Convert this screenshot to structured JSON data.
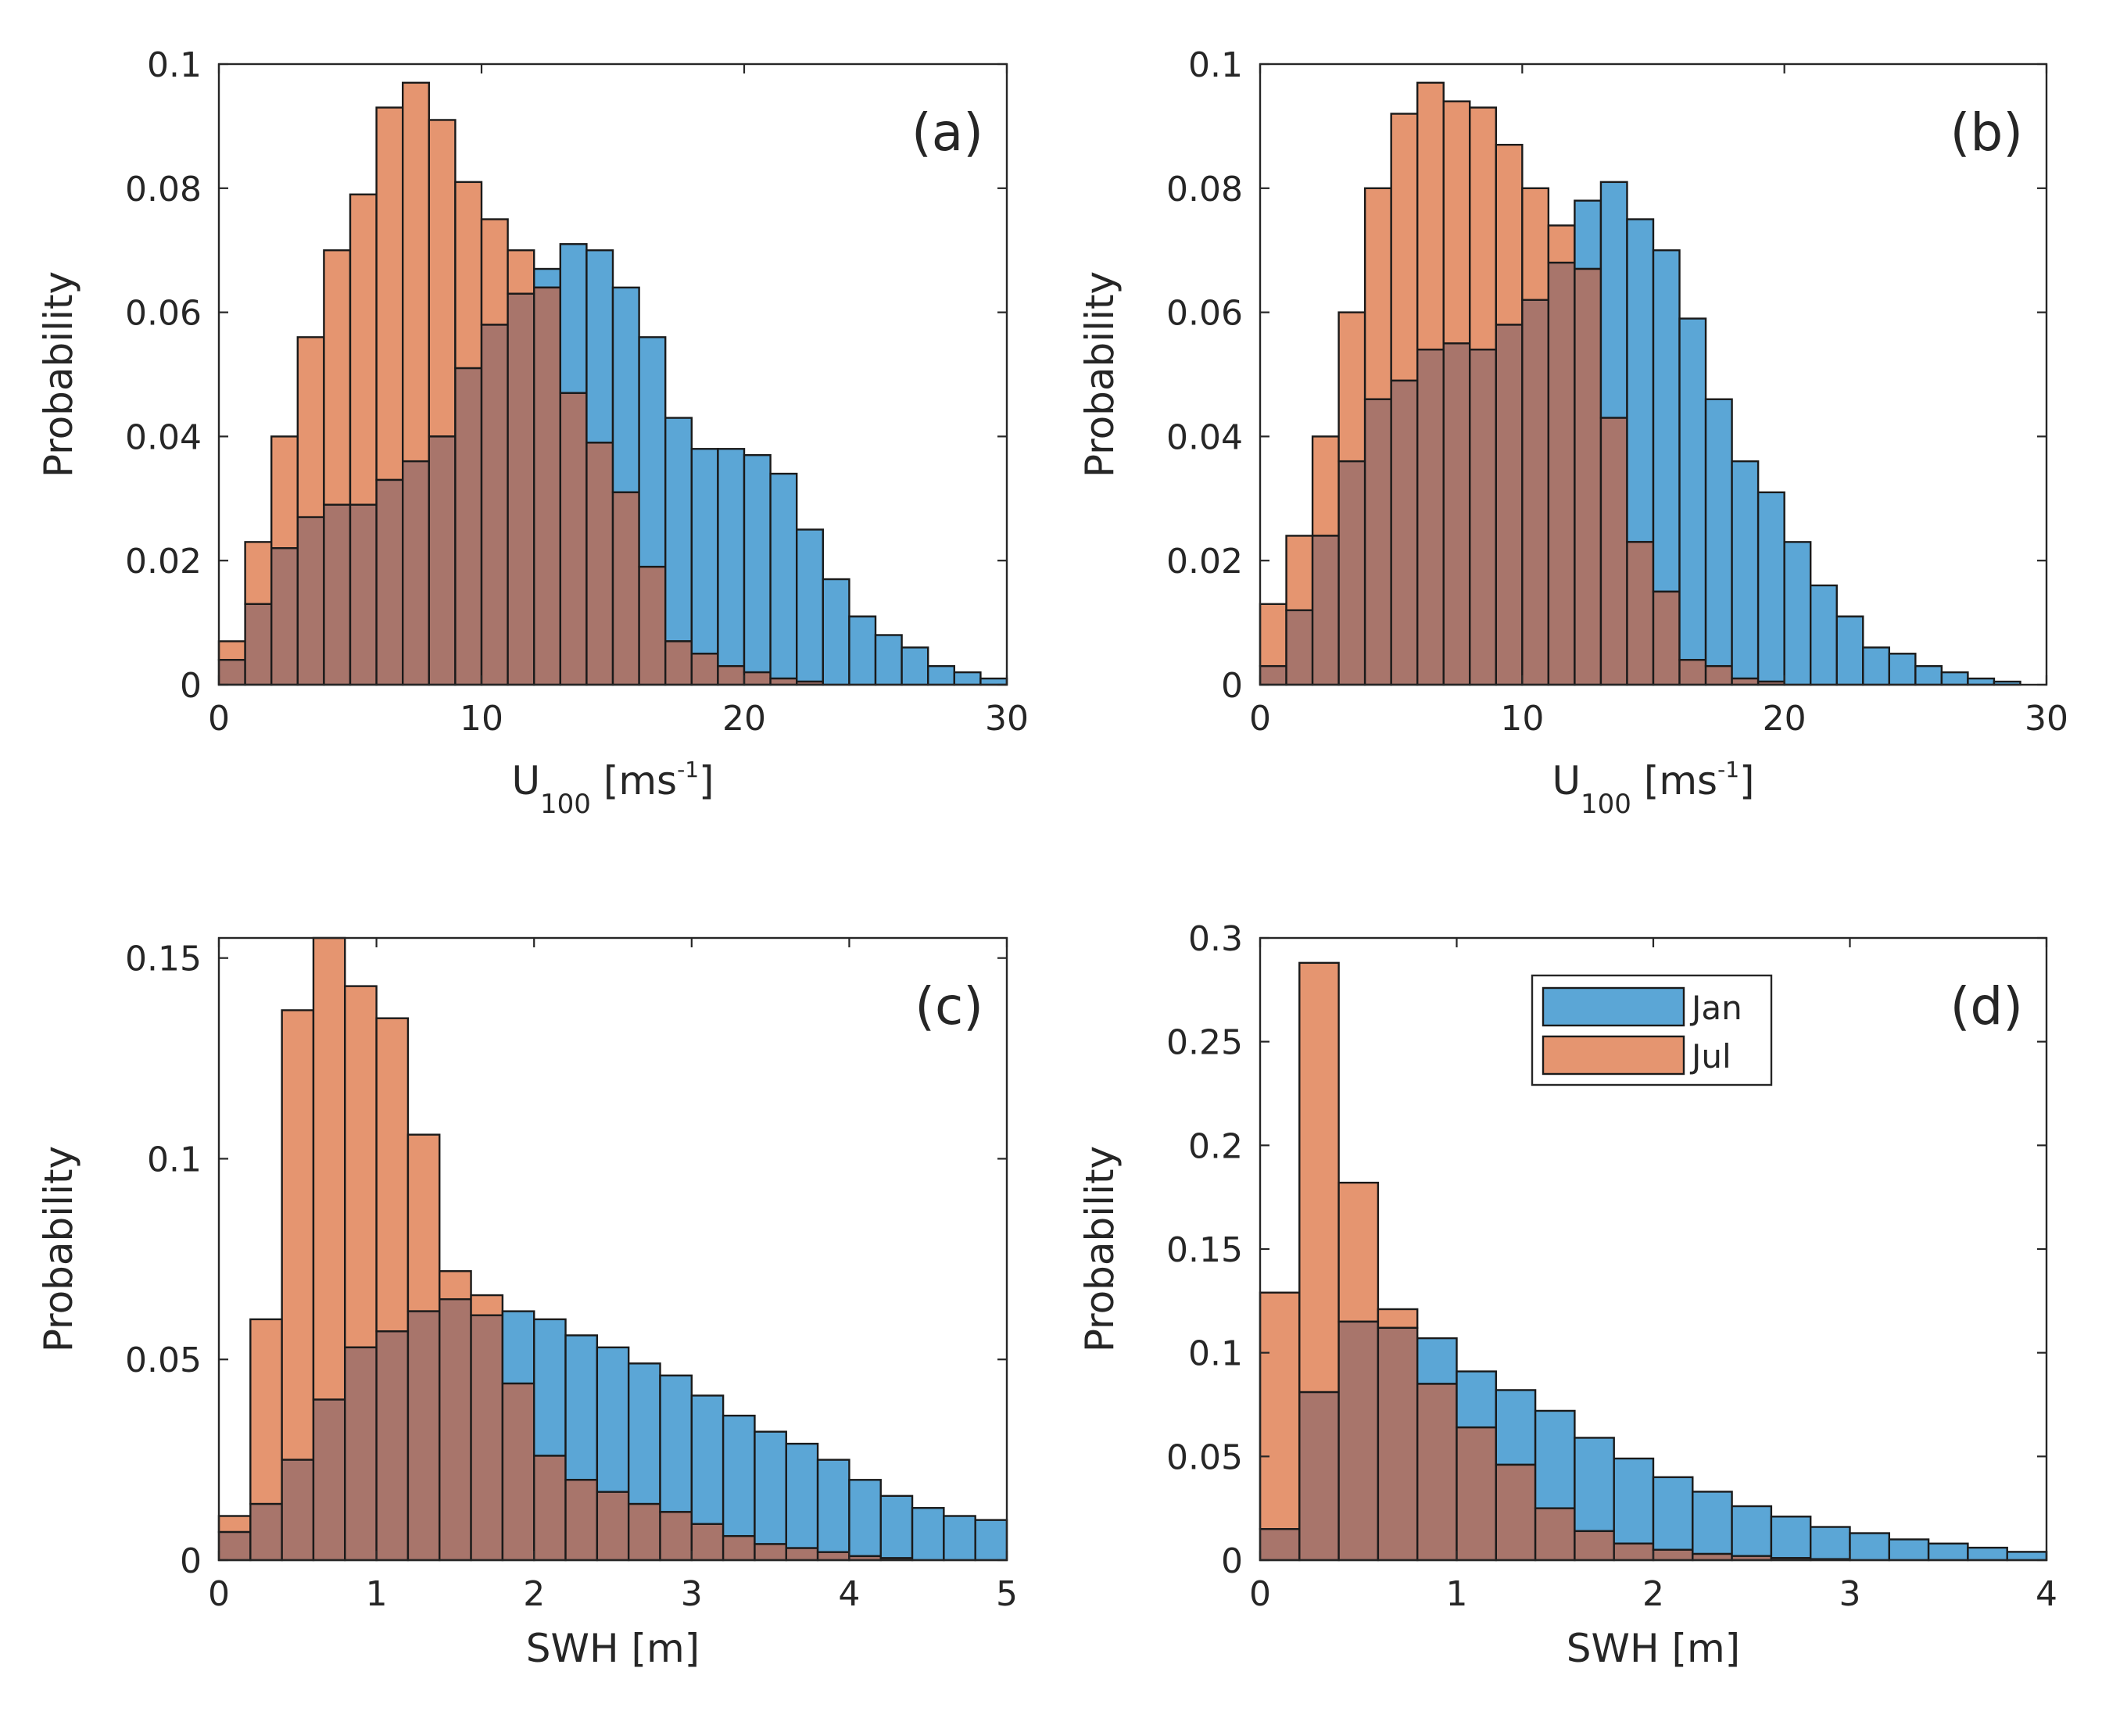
{
  "colors": {
    "jan": "#5ba6d6",
    "jul": "#e59570",
    "overlap": "#a8756b",
    "edge": "#1a1a1a"
  },
  "legend": {
    "jan_label": "Jan",
    "jul_label": "Jul"
  },
  "chart_data": [
    {
      "type": "bar",
      "panel": "(a)",
      "ylabel": "Probability",
      "xlabel_main": "U",
      "xlabel_sub": "100",
      "xlabel_open": " [ms",
      "xlabel_sup": "-1",
      "xlabel_close": "]",
      "xlim": [
        0,
        30
      ],
      "ylim": [
        0,
        0.1
      ],
      "xticks": [
        0,
        10,
        20,
        30
      ],
      "yticks": [
        0,
        0.02,
        0.04,
        0.06,
        0.08,
        0.1
      ],
      "xtick_labels": [
        "0",
        "10",
        "20",
        "30"
      ],
      "ytick_labels": [
        "0",
        "0.02",
        "0.04",
        "0.06",
        "0.08",
        "0.1"
      ],
      "bin_width": 1,
      "series": [
        {
          "name": "Jan",
          "values": [
            0.004,
            0.013,
            0.022,
            0.027,
            0.029,
            0.029,
            0.033,
            0.036,
            0.04,
            0.051,
            0.058,
            0.063,
            0.067,
            0.071,
            0.07,
            0.064,
            0.056,
            0.043,
            0.038,
            0.038,
            0.037,
            0.034,
            0.025,
            0.017,
            0.011,
            0.008,
            0.006,
            0.003,
            0.002,
            0.001
          ]
        },
        {
          "name": "Jul",
          "values": [
            0.007,
            0.023,
            0.04,
            0.056,
            0.07,
            0.079,
            0.093,
            0.097,
            0.091,
            0.081,
            0.075,
            0.07,
            0.064,
            0.047,
            0.039,
            0.031,
            0.019,
            0.007,
            0.005,
            0.003,
            0.002,
            0.001,
            0.0005,
            0,
            0,
            0,
            0,
            0,
            0,
            0
          ]
        }
      ]
    },
    {
      "type": "bar",
      "panel": "(b)",
      "ylabel": "Probability",
      "xlabel_main": "U",
      "xlabel_sub": "100",
      "xlabel_open": " [ms",
      "xlabel_sup": "-1",
      "xlabel_close": "]",
      "xlim": [
        0,
        30
      ],
      "ylim": [
        0,
        0.1
      ],
      "xticks": [
        0,
        10,
        20,
        30
      ],
      "yticks": [
        0,
        0.02,
        0.04,
        0.06,
        0.08,
        0.1
      ],
      "xtick_labels": [
        "0",
        "10",
        "20",
        "30"
      ],
      "ytick_labels": [
        "0",
        "0.02",
        "0.04",
        "0.06",
        "0.08",
        "0.1"
      ],
      "bin_width": 1,
      "series": [
        {
          "name": "Jan",
          "values": [
            0.003,
            0.012,
            0.024,
            0.036,
            0.046,
            0.049,
            0.054,
            0.055,
            0.054,
            0.058,
            0.062,
            0.068,
            0.078,
            0.081,
            0.075,
            0.07,
            0.059,
            0.046,
            0.036,
            0.031,
            0.023,
            0.016,
            0.011,
            0.006,
            0.005,
            0.003,
            0.002,
            0.001,
            0.0005,
            0
          ]
        },
        {
          "name": "Jul",
          "values": [
            0.013,
            0.024,
            0.04,
            0.06,
            0.08,
            0.092,
            0.097,
            0.094,
            0.093,
            0.087,
            0.08,
            0.074,
            0.067,
            0.043,
            0.023,
            0.015,
            0.004,
            0.003,
            0.001,
            0.0005,
            0,
            0,
            0,
            0,
            0,
            0,
            0,
            0,
            0,
            0
          ]
        }
      ]
    },
    {
      "type": "bar",
      "panel": "(c)",
      "ylabel": "Probability",
      "xlabel": "SWH [m]",
      "xlim": [
        0,
        5
      ],
      "ylim": [
        0,
        0.155
      ],
      "xticks": [
        0,
        1,
        2,
        3,
        4,
        5
      ],
      "yticks": [
        0,
        0.05,
        0.1,
        0.15
      ],
      "xtick_labels": [
        "0",
        "1",
        "2",
        "3",
        "4",
        "5"
      ],
      "ytick_labels": [
        "0",
        "0.05",
        "0.1",
        "0.15"
      ],
      "bin_width": 0.2,
      "series": [
        {
          "name": "Jan",
          "values": [
            0.007,
            0.014,
            0.025,
            0.04,
            0.053,
            0.057,
            0.062,
            0.065,
            0.061,
            0.062,
            0.06,
            0.056,
            0.053,
            0.049,
            0.046,
            0.041,
            0.036,
            0.032,
            0.029,
            0.025,
            0.02,
            0.016,
            0.013,
            0.011,
            0.01
          ]
        },
        {
          "name": "Jul",
          "values": [
            0.011,
            0.06,
            0.137,
            0.155,
            0.143,
            0.135,
            0.106,
            0.072,
            0.066,
            0.044,
            0.026,
            0.02,
            0.017,
            0.014,
            0.012,
            0.009,
            0.006,
            0.004,
            0.003,
            0.002,
            0.001,
            0.0005,
            0,
            0,
            0
          ]
        }
      ]
    },
    {
      "type": "bar",
      "panel": "(d)",
      "ylabel": "Probability",
      "xlabel": "SWH [m]",
      "xlim": [
        0,
        4
      ],
      "ylim": [
        0,
        0.3
      ],
      "xticks": [
        0,
        1,
        2,
        3,
        4
      ],
      "yticks": [
        0,
        0.05,
        0.1,
        0.15,
        0.2,
        0.25,
        0.3
      ],
      "xtick_labels": [
        "0",
        "1",
        "2",
        "3",
        "4"
      ],
      "ytick_labels": [
        "0",
        "0.05",
        "0.1",
        "0.15",
        "0.2",
        "0.25",
        "0.3"
      ],
      "legend_position": "top-right",
      "bin_width": 0.2,
      "series": [
        {
          "name": "Jan",
          "values": [
            0.015,
            0.081,
            0.115,
            0.112,
            0.107,
            0.091,
            0.082,
            0.072,
            0.059,
            0.049,
            0.04,
            0.033,
            0.026,
            0.021,
            0.016,
            0.013,
            0.01,
            0.008,
            0.006,
            0.004
          ]
        },
        {
          "name": "Jul",
          "values": [
            0.129,
            0.288,
            0.182,
            0.121,
            0.085,
            0.064,
            0.046,
            0.025,
            0.014,
            0.008,
            0.005,
            0.003,
            0.002,
            0.001,
            0.0005,
            0,
            0,
            0,
            0,
            0
          ]
        }
      ]
    }
  ]
}
